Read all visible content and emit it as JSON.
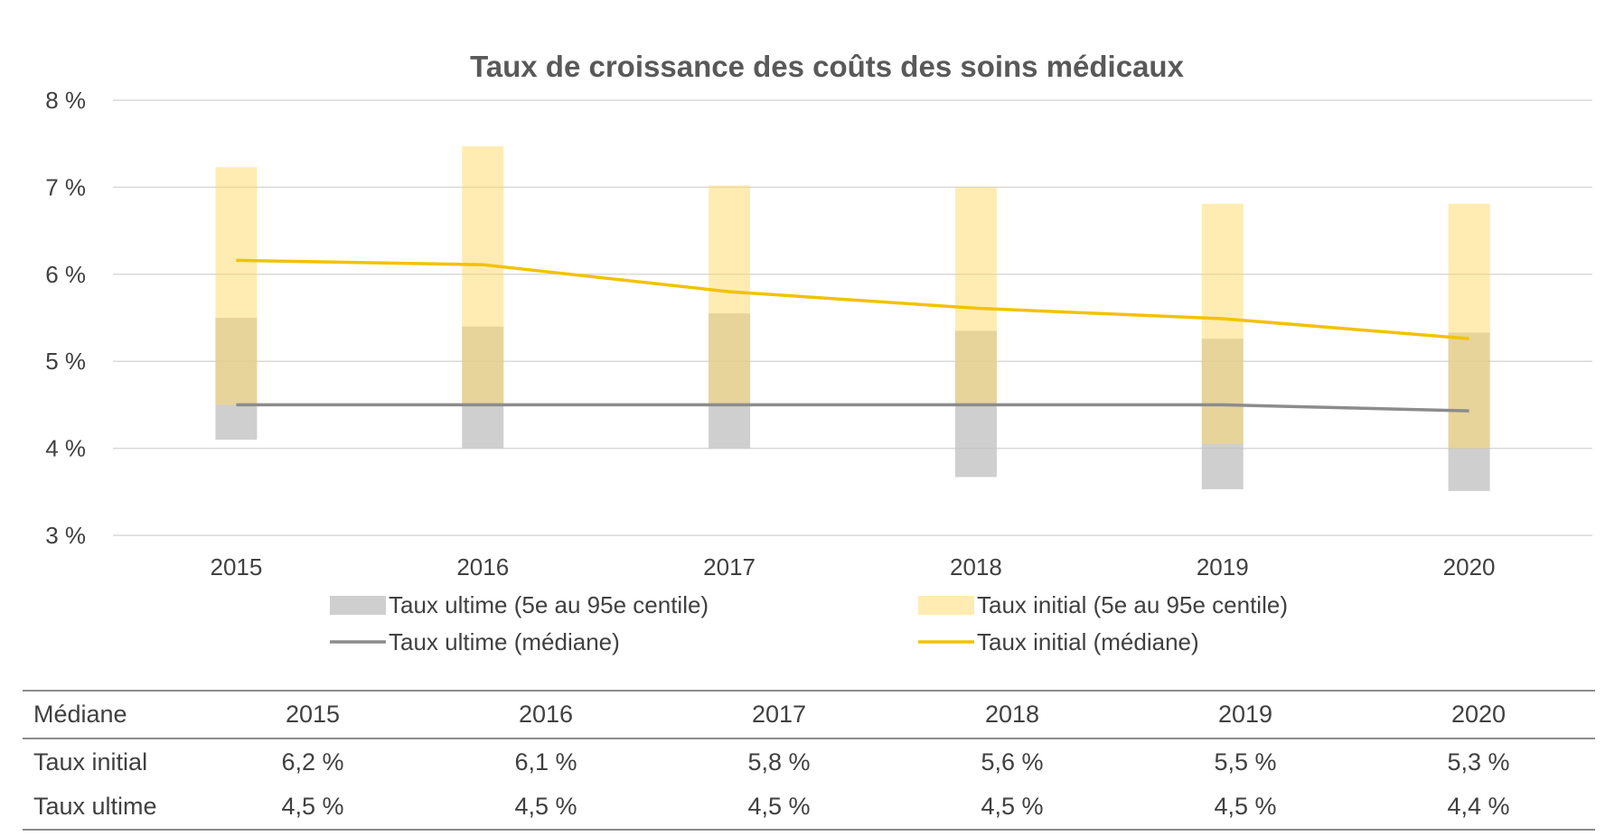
{
  "chart_data": {
    "type": "bar",
    "title": "Taux de croissance des coûts des soins médicaux",
    "categories": [
      "2015",
      "2016",
      "2017",
      "2018",
      "2019",
      "2020"
    ],
    "y_ticks": [
      "3 %",
      "4 %",
      "5 %",
      "6 %",
      "7 %",
      "8 %"
    ],
    "ylim": [
      3,
      8
    ],
    "grid": true,
    "legend_position": "bottom",
    "series": [
      {
        "name": "Taux ultime (5e au 95e centile)",
        "kind": "range",
        "color": "#bfbfbf",
        "low": [
          4.1,
          4.0,
          4.0,
          3.67,
          3.53,
          3.51
        ],
        "high": [
          5.5,
          5.4,
          5.55,
          5.35,
          5.26,
          5.33
        ]
      },
      {
        "name": "Taux initial (5e au 95e centile)",
        "kind": "range",
        "color": "#ffd966",
        "low": [
          4.5,
          4.5,
          4.5,
          4.5,
          4.05,
          4.0
        ],
        "high": [
          7.23,
          7.47,
          7.02,
          7.0,
          6.81,
          6.81
        ]
      },
      {
        "name": "Taux ultime (médiane)",
        "kind": "line",
        "color": "#8c8c8c",
        "values": [
          4.5,
          4.5,
          4.5,
          4.5,
          4.5,
          4.43
        ]
      },
      {
        "name": "Taux initial (médiane)",
        "kind": "line",
        "color": "#f2c200",
        "values": [
          6.16,
          6.11,
          5.8,
          5.61,
          5.49,
          5.26
        ]
      }
    ]
  },
  "table": {
    "header_label": "Médiane",
    "years": [
      "2015",
      "2016",
      "2017",
      "2018",
      "2019",
      "2020"
    ],
    "rows": [
      {
        "label": "Taux initial",
        "values": [
          "6,2 %",
          "6,1 %",
          "5,8 %",
          "5,6 %",
          "5,5 %",
          "5,3 %"
        ]
      },
      {
        "label": "Taux ultime",
        "values": [
          "4,5 %",
          "4,5 %",
          "4,5 %",
          "4,5 %",
          "4,5 %",
          "4,4 %"
        ]
      }
    ]
  }
}
